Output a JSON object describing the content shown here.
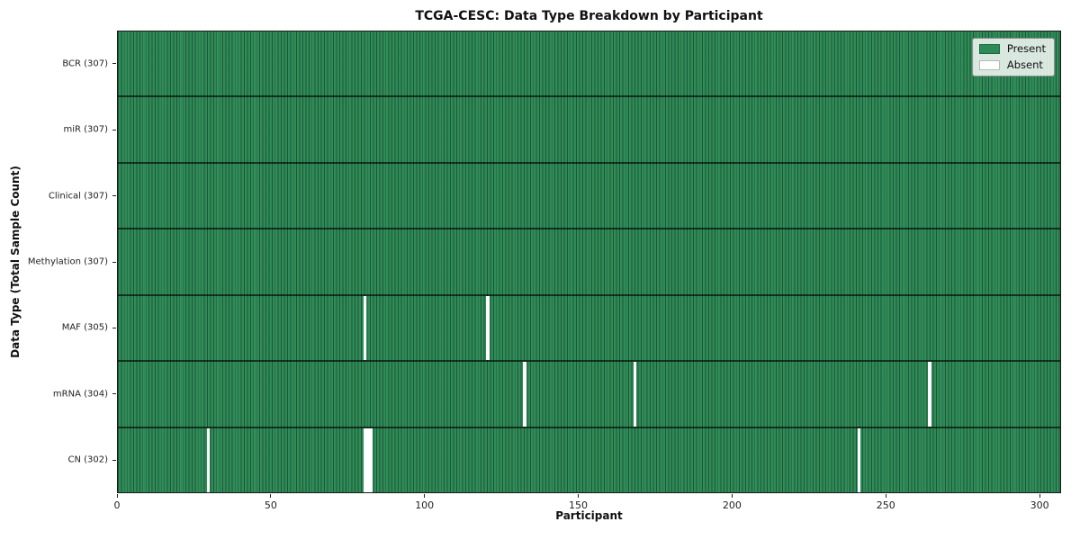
{
  "chart_data": {
    "type": "heatmap",
    "title": "TCGA-CESC: Data Type Breakdown by Participant",
    "xlabel": "Participant",
    "ylabel": "Data Type (Total Sample Count)",
    "xlim": [
      0,
      307
    ],
    "x_ticks": [
      0,
      50,
      100,
      150,
      200,
      250,
      300
    ],
    "n_participants": 307,
    "grid": false,
    "legend_position": "upper right",
    "legend": [
      {
        "label": "Present",
        "color": "#2e8b57"
      },
      {
        "label": "Absent",
        "color": "#ffffff"
      }
    ],
    "rows": [
      {
        "label": "BCR (307)",
        "data_type": "BCR",
        "present_count": 307,
        "absent_participants": []
      },
      {
        "label": "miR (307)",
        "data_type": "miR",
        "present_count": 307,
        "absent_participants": []
      },
      {
        "label": "Clinical (307)",
        "data_type": "Clinical",
        "present_count": 307,
        "absent_participants": []
      },
      {
        "label": "Methylation (307)",
        "data_type": "Methylation",
        "present_count": 307,
        "absent_participants": []
      },
      {
        "label": "MAF (305)",
        "data_type": "MAF",
        "present_count": 305,
        "absent_participants": [
          80,
          120
        ]
      },
      {
        "label": "mRNA (304)",
        "data_type": "mRNA",
        "present_count": 304,
        "absent_participants": [
          132,
          168,
          264
        ]
      },
      {
        "label": "CN (302)",
        "data_type": "CN",
        "present_count": 302,
        "absent_participants": [
          29,
          80,
          81,
          82,
          241
        ]
      }
    ]
  }
}
